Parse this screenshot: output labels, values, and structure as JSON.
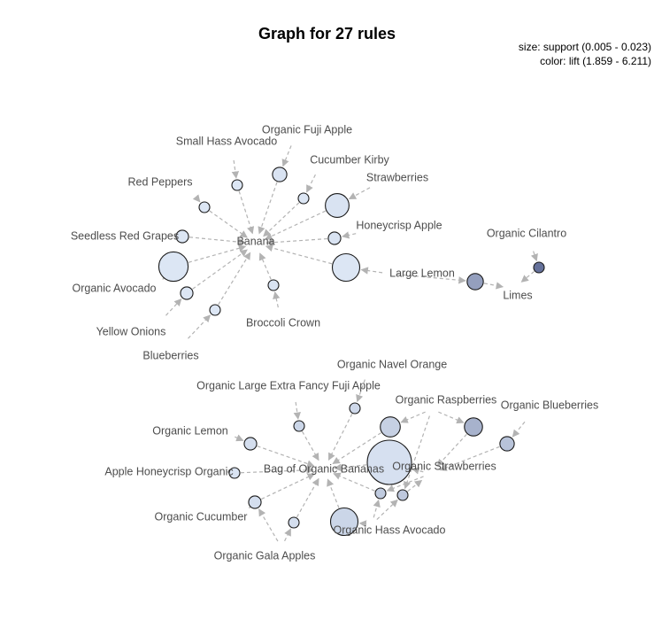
{
  "title": "Graph for 27 rules",
  "legend": {
    "size": "size: support (0.005 - 0.023)",
    "color": "color: lift (1.859 - 6.211)"
  },
  "colors": {
    "edge": "#b3b3b3",
    "label": "#4d4d4d",
    "node_stroke": "#1a1a1a",
    "lift_low": "#dde7f5",
    "lift_high": "#65719a"
  },
  "items": [
    {
      "id": "banana",
      "label": "Banana"
    },
    {
      "id": "fuji",
      "label": "Organic Fuji Apple"
    },
    {
      "id": "avocado_small",
      "label": "Small Hass Avocado"
    },
    {
      "id": "cucumber_kirby",
      "label": "Cucumber Kirby"
    },
    {
      "id": "strawberries",
      "label": "Strawberries"
    },
    {
      "id": "red_peppers",
      "label": "Red Peppers"
    },
    {
      "id": "honeycrisp",
      "label": "Honeycrisp Apple"
    },
    {
      "id": "seedless_grapes",
      "label": "Seedless Red Grapes"
    },
    {
      "id": "organic_avocado",
      "label": "Organic Avocado"
    },
    {
      "id": "large_lemon",
      "label": "Large Lemon"
    },
    {
      "id": "yellow_onions",
      "label": "Yellow Onions"
    },
    {
      "id": "broccoli",
      "label": "Broccoli Crown"
    },
    {
      "id": "blueberries",
      "label": "Blueberries"
    },
    {
      "id": "cilantro",
      "label": "Organic Cilantro"
    },
    {
      "id": "limes",
      "label": "Limes"
    },
    {
      "id": "bag_bananas",
      "label": "Bag of Organic Bananas"
    },
    {
      "id": "navel_orange",
      "label": "Organic Navel Orange"
    },
    {
      "id": "large_fuji",
      "label": "Organic Large Extra Fancy Fuji Apple"
    },
    {
      "id": "raspberries",
      "label": "Organic Raspberries"
    },
    {
      "id": "org_blueberries",
      "label": "Organic Blueberries"
    },
    {
      "id": "org_lemon",
      "label": "Organic Lemon"
    },
    {
      "id": "apple_honeycrisp_org",
      "label": "Apple Honeycrisp Organic"
    },
    {
      "id": "org_strawberries",
      "label": "Organic Strawberries"
    },
    {
      "id": "org_cucumber",
      "label": "Organic Cucumber"
    },
    {
      "id": "hass_avocado",
      "label": "Organic Hass Avocado"
    },
    {
      "id": "gala",
      "label": "Organic Gala Apples"
    }
  ],
  "rules": [
    {
      "id": "r1",
      "lhs": [
        "fuji"
      ],
      "rhs": "banana",
      "support": 0.007,
      "lift": 2.0
    },
    {
      "id": "r2",
      "lhs": [
        "avocado_small"
      ],
      "rhs": "banana",
      "support": 0.005,
      "lift": 1.9
    },
    {
      "id": "r3",
      "lhs": [
        "cucumber_kirby"
      ],
      "rhs": "banana",
      "support": 0.005,
      "lift": 1.9
    },
    {
      "id": "r4",
      "lhs": [
        "strawberries"
      ],
      "rhs": "banana",
      "support": 0.012,
      "lift": 2.0
    },
    {
      "id": "r5",
      "lhs": [
        "red_peppers"
      ],
      "rhs": "banana",
      "support": 0.005,
      "lift": 1.9
    },
    {
      "id": "r6",
      "lhs": [
        "honeycrisp"
      ],
      "rhs": "banana",
      "support": 0.006,
      "lift": 2.0
    },
    {
      "id": "r7",
      "lhs": [
        "seedless_grapes"
      ],
      "rhs": "banana",
      "support": 0.006,
      "lift": 1.9
    },
    {
      "id": "r8",
      "lhs": [
        "organic_avocado"
      ],
      "rhs": "banana",
      "support": 0.015,
      "lift": 1.9
    },
    {
      "id": "r9",
      "lhs": [
        "large_lemon"
      ],
      "rhs": "banana",
      "support": 0.014,
      "lift": 1.9
    },
    {
      "id": "r10",
      "lhs": [
        "yellow_onions"
      ],
      "rhs": "banana",
      "support": 0.006,
      "lift": 1.9
    },
    {
      "id": "r11",
      "lhs": [
        "broccoli"
      ],
      "rhs": "banana",
      "support": 0.005,
      "lift": 2.0
    },
    {
      "id": "r12",
      "lhs": [
        "blueberries"
      ],
      "rhs": "banana",
      "support": 0.005,
      "lift": 1.9
    },
    {
      "id": "r13",
      "lhs": [
        "large_lemon"
      ],
      "rhs": "limes",
      "support": 0.008,
      "lift": 4.5
    },
    {
      "id": "r14",
      "lhs": [
        "cilantro"
      ],
      "rhs": "limes",
      "support": 0.005,
      "lift": 6.2
    },
    {
      "id": "r15",
      "lhs": [
        "navel_orange"
      ],
      "rhs": "bag_bananas",
      "support": 0.005,
      "lift": 2.4
    },
    {
      "id": "r16",
      "lhs": [
        "large_fuji"
      ],
      "rhs": "bag_bananas",
      "support": 0.005,
      "lift": 2.5
    },
    {
      "id": "r17",
      "lhs": [
        "raspberries"
      ],
      "rhs": "bag_bananas",
      "support": 0.01,
      "lift": 2.7
    },
    {
      "id": "r18",
      "lhs": [
        "org_blueberries"
      ],
      "rhs": "org_strawberries",
      "support": 0.007,
      "lift": 3.2
    },
    {
      "id": "r19",
      "lhs": [
        "raspberries"
      ],
      "rhs": "org_strawberries",
      "support": 0.009,
      "lift": 3.8
    },
    {
      "id": "r20",
      "lhs": [
        "org_lemon"
      ],
      "rhs": "bag_bananas",
      "support": 0.006,
      "lift": 2.2
    },
    {
      "id": "r21",
      "lhs": [
        "apple_honeycrisp_org"
      ],
      "rhs": "bag_bananas",
      "support": 0.005,
      "lift": 2.0
    },
    {
      "id": "r22",
      "lhs": [
        "org_strawberries"
      ],
      "rhs": "bag_bananas",
      "support": 0.023,
      "lift": 2.1
    },
    {
      "id": "r23",
      "lhs": [
        "org_cucumber",
        "gala"
      ],
      "rhs": "bag_bananas",
      "support": 0.006,
      "lift": 2.2
    },
    {
      "id": "r24",
      "lhs": [
        "gala"
      ],
      "rhs": "bag_bananas",
      "support": 0.005,
      "lift": 2.2
    },
    {
      "id": "r25",
      "lhs": [
        "hass_avocado"
      ],
      "rhs": "bag_bananas",
      "support": 0.014,
      "lift": 2.5
    },
    {
      "id": "r26",
      "lhs": [
        "org_strawberries",
        "hass_avocado"
      ],
      "rhs": "bag_bananas",
      "support": 0.005,
      "lift": 2.9
    },
    {
      "id": "r27",
      "lhs": [
        "raspberries",
        "hass_avocado"
      ],
      "rhs": "org_strawberries",
      "support": 0.005,
      "lift": 3.0
    }
  ]
}
